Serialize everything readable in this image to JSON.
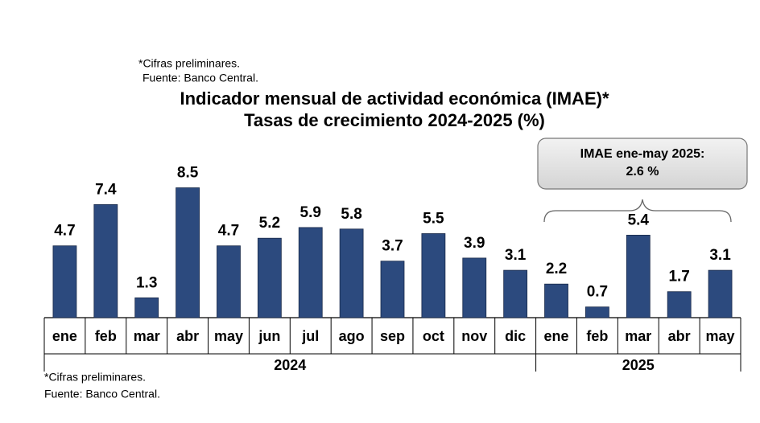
{
  "chart_data": {
    "type": "bar",
    "title": [
      "Indicador mensual de actividad económica (IMAE)*",
      "Tasas de crecimiento 2024-2025 (%)"
    ],
    "notes_top": [
      "*Cifras preliminares.",
      "Fuente: Banco Central."
    ],
    "notes_bottom": [
      "*Cifras preliminares.",
      "Fuente: Banco Central."
    ],
    "color": "#2c4a7e",
    "groups": [
      {
        "name": "2024",
        "categories": [
          "ene",
          "feb",
          "mar",
          "abr",
          "may",
          "jun",
          "jul",
          "ago",
          "sep",
          "oct",
          "nov",
          "dic"
        ],
        "values": [
          4.7,
          7.4,
          1.3,
          8.5,
          4.7,
          5.2,
          5.9,
          5.8,
          3.7,
          5.5,
          3.9,
          3.1
        ]
      },
      {
        "name": "2025",
        "categories": [
          "ene",
          "feb",
          "mar",
          "abr",
          "may"
        ],
        "values": [
          2.2,
          0.7,
          5.4,
          1.7,
          3.1
        ]
      }
    ],
    "annotation": [
      "IMAE ene-may 2025:",
      "2.6 %"
    ]
  }
}
